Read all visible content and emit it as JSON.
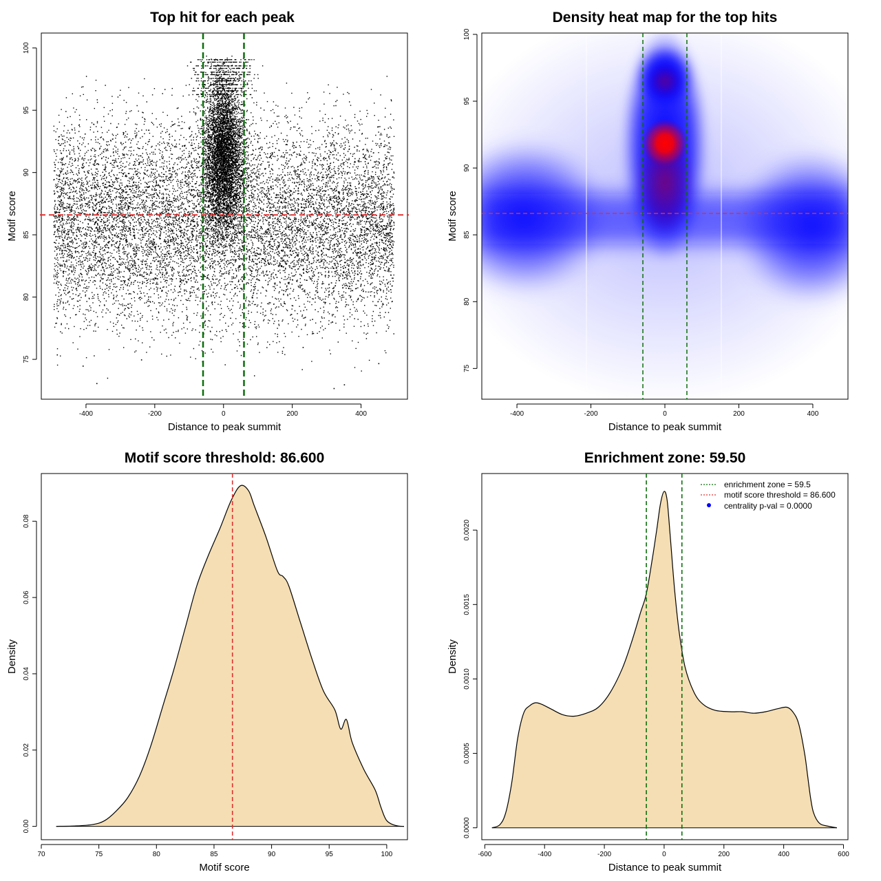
{
  "colors": {
    "fill": "#f5deb3",
    "threshold_line": "#e03030",
    "zone_line": "#0b6e0b",
    "heat_low": "#ffffff",
    "heat_mid": "#0000ff",
    "heat_high": "#ff0000",
    "pval_dot": "#0000ff"
  },
  "chart_data": [
    {
      "id": "scatter",
      "type": "scatter",
      "title": "Top hit for each peak",
      "xlabel": "Distance to peak summit",
      "ylabel": "Motif score",
      "xlim": [
        -530,
        535
      ],
      "ylim": [
        71.8,
        101.2
      ],
      "xticks": [
        -400,
        -200,
        0,
        200,
        400
      ],
      "yticks": [
        75,
        80,
        85,
        90,
        95,
        100
      ],
      "hline": 86.6,
      "vlines": [
        -59.5,
        59.5
      ],
      "sample_points": [
        {
          "x": -370,
          "y": 73.1
        },
        {
          "x": 320,
          "y": 72.7
        },
        {
          "x": 350,
          "y": 73.0
        },
        {
          "x": 450,
          "y": 74.7
        },
        {
          "x": -410,
          "y": 74.5
        },
        {
          "x": -240,
          "y": 75.0
        },
        {
          "x": 230,
          "y": 76.0
        },
        {
          "x": -485,
          "y": 75.4
        }
      ]
    },
    {
      "id": "heatmap",
      "type": "heatmap",
      "title": "Density heat map for the top hits",
      "xlabel": "Distance to peak summit",
      "ylabel": "Motif score",
      "xlim": [
        -495,
        495
      ],
      "ylim": [
        72.7,
        100.1
      ],
      "xticks": [
        -400,
        -200,
        0,
        200,
        400
      ],
      "yticks": [
        75,
        80,
        85,
        90,
        95,
        100
      ],
      "hline": 86.6,
      "vlines": [
        -59.5,
        59.5
      ],
      "density_peak": {
        "x": 0,
        "y": 91.8
      }
    },
    {
      "id": "score_density",
      "type": "area",
      "title": "Motif score threshold: 86.600",
      "xlabel": "Motif score",
      "ylabel": "Density",
      "xlim": [
        70,
        101.8
      ],
      "ylim": [
        -0.0035,
        0.0925
      ],
      "xticks": [
        70,
        75,
        80,
        85,
        90,
        95,
        100
      ],
      "yticks": [
        "0.00",
        "0.02",
        "0.04",
        "0.06",
        "0.08"
      ],
      "vline": 86.6,
      "x": [
        71.3,
        73,
        74.5,
        75.5,
        76.5,
        77.5,
        78.5,
        79.5,
        80.5,
        81.5,
        82.5,
        83.5,
        84.5,
        85.5,
        86.5,
        87.3,
        88,
        88.5,
        89.5,
        90.5,
        91,
        91.5,
        92.5,
        93.5,
        94.5,
        95.5,
        96,
        96.5,
        97,
        98,
        99,
        99.5,
        100,
        100.8,
        101.5
      ],
      "y": [
        0,
        0.0001,
        0.0005,
        0.0015,
        0.004,
        0.0075,
        0.013,
        0.021,
        0.031,
        0.041,
        0.052,
        0.063,
        0.071,
        0.078,
        0.0855,
        0.0893,
        0.088,
        0.084,
        0.076,
        0.067,
        0.0655,
        0.063,
        0.0535,
        0.044,
        0.0355,
        0.0305,
        0.0255,
        0.028,
        0.022,
        0.015,
        0.0095,
        0.005,
        0.0015,
        0.0002,
        0
      ]
    },
    {
      "id": "distance_density",
      "type": "area",
      "title": "Enrichment zone: 59.50",
      "xlabel": "Distance to peak summit",
      "ylabel": "Density",
      "xlim": [
        -610,
        615
      ],
      "ylim": [
        -8e-05,
        0.00238
      ],
      "xticks": [
        -600,
        -400,
        -200,
        0,
        200,
        400,
        600
      ],
      "yticks": [
        "0.0000",
        "0.0005",
        "0.0010",
        "0.0015",
        "0.0020"
      ],
      "vlines": [
        -59.5,
        59.5
      ],
      "x": [
        -576,
        -550,
        -530,
        -510,
        -490,
        -470,
        -450,
        -430,
        -410,
        -380,
        -340,
        -300,
        -260,
        -220,
        -180,
        -140,
        -110,
        -80,
        -60,
        -40,
        -25,
        -12,
        0,
        10,
        20,
        35,
        50,
        70,
        100,
        130,
        170,
        220,
        260,
        300,
        340,
        380,
        410,
        430,
        450,
        470,
        480,
        490,
        500,
        520,
        550,
        578
      ],
      "y": [
        0,
        2e-05,
        0.0001,
        0.0003,
        0.0006,
        0.00077,
        0.00082,
        0.00084,
        0.00083,
        0.0008,
        0.00076,
        0.00075,
        0.00077,
        0.00081,
        0.00091,
        0.00107,
        0.00124,
        0.00144,
        0.00157,
        0.0018,
        0.002,
        0.00218,
        0.00226,
        0.0022,
        0.00197,
        0.0016,
        0.00132,
        0.00108,
        0.00091,
        0.00083,
        0.00079,
        0.00078,
        0.00078,
        0.00077,
        0.00078,
        0.0008,
        0.00081,
        0.00078,
        0.0007,
        0.0005,
        0.00035,
        0.0002,
        0.0001,
        3e-05,
        1e-05,
        0
      ],
      "legend": [
        {
          "label": "enrichment zone = 59.5",
          "symbol": "dotted-green"
        },
        {
          "label": "motif score threshold = 86.600",
          "symbol": "dotted-red"
        },
        {
          "label": "centrality p-val = 0.0000",
          "symbol": "dot-blue"
        }
      ]
    }
  ]
}
